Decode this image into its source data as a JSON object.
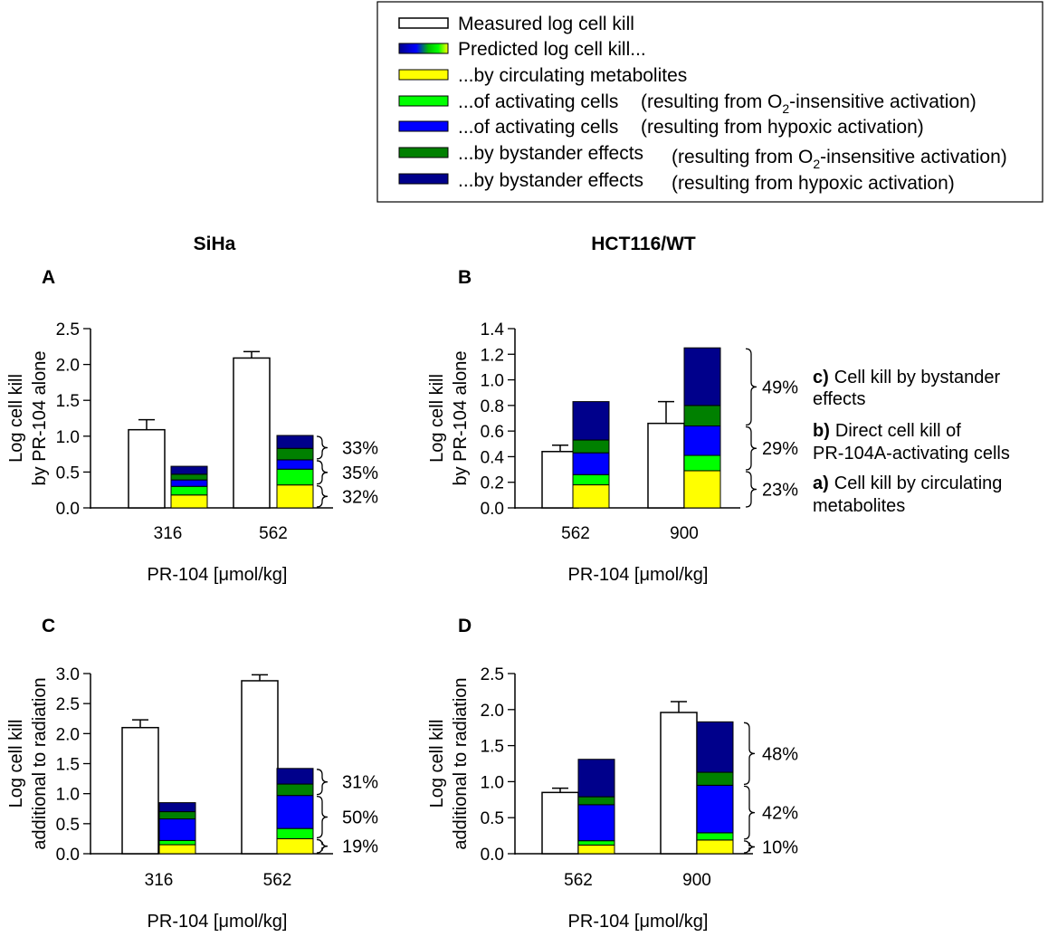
{
  "colors": {
    "circulating": "#ffff00",
    "o2_activating": "#00ff00",
    "hypoxic_activating": "#0000ff",
    "o2_bystander": "#008000",
    "hypoxic_bystander": "#00008b",
    "measured": "#ffffff"
  },
  "legend": {
    "measured": "Measured log cell kill",
    "predicted": "Predicted log cell kill...",
    "circulating": "...by circulating metabolites",
    "o2_activating_main": "...of activating cells",
    "o2_activating_paren_pre": "(resulting from O",
    "o2_activating_sub": "2",
    "o2_activating_paren_post": "-insensitive activation)",
    "hypoxic_activating_main": "...of activating cells",
    "hypoxic_activating_paren": "(resulting from hypoxic activation)",
    "o2_bystander_main": "...by bystander effects",
    "o2_bystander_paren_pre": "(resulting from O",
    "o2_bystander_sub": "2",
    "o2_bystander_paren_post": "-insensitive activation)",
    "hypoxic_bystander_main": "...by bystander effects",
    "hypoxic_bystander_paren": "(resulting from hypoxic activation)"
  },
  "columns": {
    "left": "SiHa",
    "right": "HCT116/WT"
  },
  "components": {
    "c_bold": "c)",
    "c_line1": "Cell kill by bystander",
    "c_line2": "effects",
    "b_bold": "b)",
    "b_line1": "Direct cell kill of",
    "b_line2": "PR-104A-activating cells",
    "a_bold": "a)",
    "a_line1": "Cell kill by circulating",
    "a_line2": "metabolites"
  },
  "chart_data": [
    {
      "type": "bar",
      "panel": "A",
      "title": "SiHa",
      "ylabel_line1": "Log cell kill",
      "ylabel_line2": "by PR-104 alone",
      "xlabel": "PR-104 [μmol/kg]",
      "ylim": [
        0,
        2.5
      ],
      "yticks": [
        "0.0",
        "0.5",
        "1.0",
        "1.5",
        "2.0",
        "2.5"
      ],
      "categories": [
        "316",
        "562"
      ],
      "measured": [
        1.09,
        2.09
      ],
      "measured_err": [
        0.14,
        0.09
      ],
      "predicted_stack": [
        [
          0.18,
          0.12,
          0.09,
          0.08,
          0.11
        ],
        [
          0.32,
          0.22,
          0.13,
          0.16,
          0.18
        ]
      ],
      "percent_labels": [
        "33%",
        "35%",
        "32%"
      ]
    },
    {
      "type": "bar",
      "panel": "B",
      "title": "HCT116/WT",
      "ylabel_line1": "Log cell kill",
      "ylabel_line2": "by PR-104 alone",
      "xlabel": "PR-104 [μmol/kg]",
      "ylim": [
        0,
        1.4
      ],
      "yticks": [
        "0.0",
        "0.2",
        "0.4",
        "0.6",
        "0.8",
        "1.0",
        "1.2",
        "1.4"
      ],
      "categories": [
        "562",
        "900"
      ],
      "measured": [
        0.44,
        0.66
      ],
      "measured_err": [
        0.05,
        0.17
      ],
      "predicted_stack": [
        [
          0.18,
          0.08,
          0.17,
          0.1,
          0.3
        ],
        [
          0.29,
          0.12,
          0.23,
          0.16,
          0.45
        ]
      ],
      "percent_labels": [
        "49%",
        "29%",
        "23%"
      ]
    },
    {
      "type": "bar",
      "panel": "C",
      "title": "",
      "ylabel_line1": "Log cell kill",
      "ylabel_line2": "additional to radiation",
      "xlabel": "PR-104 [μmol/kg]",
      "ylim": [
        0,
        3.0
      ],
      "yticks": [
        "0.0",
        "0.5",
        "1.0",
        "1.5",
        "2.0",
        "2.5",
        "3.0"
      ],
      "categories": [
        "316",
        "562"
      ],
      "measured": [
        2.1,
        2.88
      ],
      "measured_err": [
        0.13,
        0.1
      ],
      "predicted_stack": [
        [
          0.15,
          0.07,
          0.36,
          0.12,
          0.15
        ],
        [
          0.25,
          0.17,
          0.55,
          0.19,
          0.26
        ]
      ],
      "percent_labels": [
        "31%",
        "50%",
        "19%"
      ]
    },
    {
      "type": "bar",
      "panel": "D",
      "title": "",
      "ylabel_line1": "Log cell kill",
      "ylabel_line2": "additional to radiation",
      "xlabel": "PR-104 [μmol/kg]",
      "ylim": [
        0,
        2.5
      ],
      "yticks": [
        "0.0",
        "0.5",
        "1.0",
        "1.5",
        "2.0",
        "2.5"
      ],
      "categories": [
        "562",
        "900"
      ],
      "measured": [
        0.85,
        1.96
      ],
      "measured_err": [
        0.06,
        0.15
      ],
      "predicted_stack": [
        [
          0.12,
          0.06,
          0.5,
          0.11,
          0.52
        ],
        [
          0.19,
          0.1,
          0.66,
          0.18,
          0.7
        ]
      ],
      "percent_labels": [
        "48%",
        "42%",
        "10%"
      ]
    }
  ]
}
